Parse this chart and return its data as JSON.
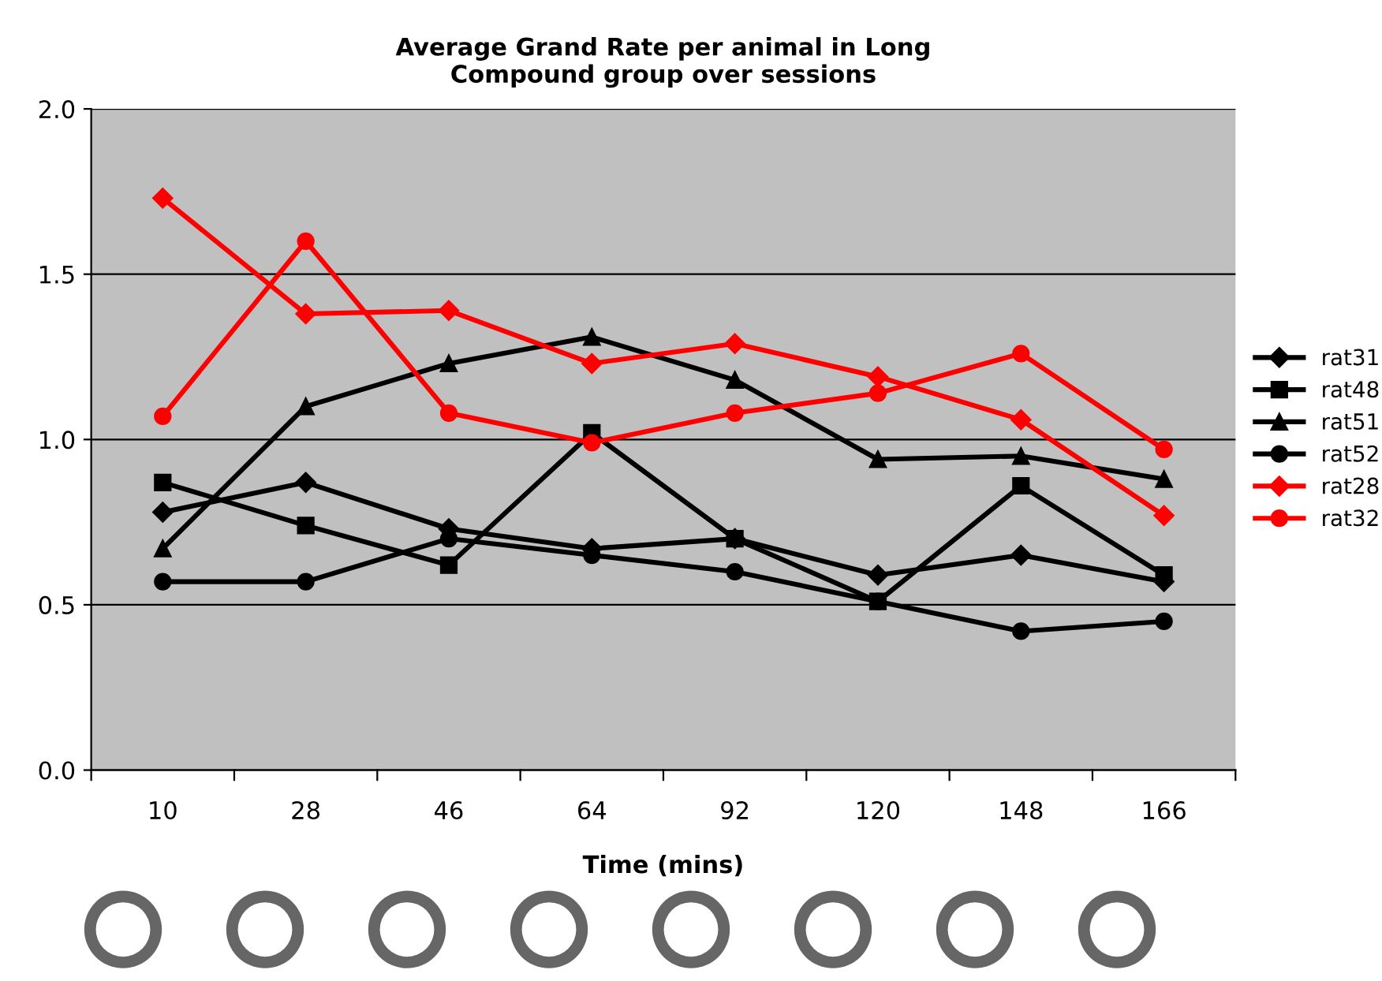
{
  "chart_data": {
    "type": "line",
    "title": "Average Grand Rate per animal in Long\nCompound group over sessions",
    "xlabel": "Time (mins)",
    "categories": [
      "10",
      "28",
      "46",
      "64",
      "92",
      "120",
      "148",
      "166"
    ],
    "series": [
      {
        "name": "rat31",
        "color": "#000000",
        "marker": "diamond",
        "values": [
          0.78,
          0.87,
          0.73,
          0.67,
          0.7,
          0.59,
          0.65,
          0.57
        ]
      },
      {
        "name": "rat48",
        "color": "#000000",
        "marker": "square",
        "values": [
          0.87,
          0.74,
          0.62,
          1.02,
          0.7,
          0.51,
          0.86,
          0.59
        ]
      },
      {
        "name": "rat51",
        "color": "#000000",
        "marker": "triangle",
        "values": [
          0.67,
          1.1,
          1.23,
          1.31,
          1.18,
          0.94,
          0.95,
          0.88
        ]
      },
      {
        "name": "rat52",
        "color": "#000000",
        "marker": "circle",
        "values": [
          0.57,
          0.57,
          0.7,
          0.65,
          0.6,
          0.51,
          0.42,
          0.45
        ]
      },
      {
        "name": "rat28",
        "color": "#ff0000",
        "marker": "diamond",
        "values": [
          1.73,
          1.38,
          1.39,
          1.23,
          1.29,
          1.19,
          1.06,
          0.77
        ]
      },
      {
        "name": "rat32",
        "color": "#ff0000",
        "marker": "circle",
        "values": [
          1.07,
          1.6,
          1.08,
          0.99,
          1.08,
          1.14,
          1.26,
          0.97
        ]
      }
    ],
    "ylim": [
      0,
      2
    ],
    "yticks": [
      {
        "value": 0,
        "label": "0.0"
      },
      {
        "value": 0.5,
        "label": "0.5"
      },
      {
        "value": 1,
        "label": "1.0"
      },
      {
        "value": 1.5,
        "label": "1.5"
      },
      {
        "value": 2,
        "label": "2.0"
      }
    ],
    "grid": "y",
    "legend": "right"
  }
}
